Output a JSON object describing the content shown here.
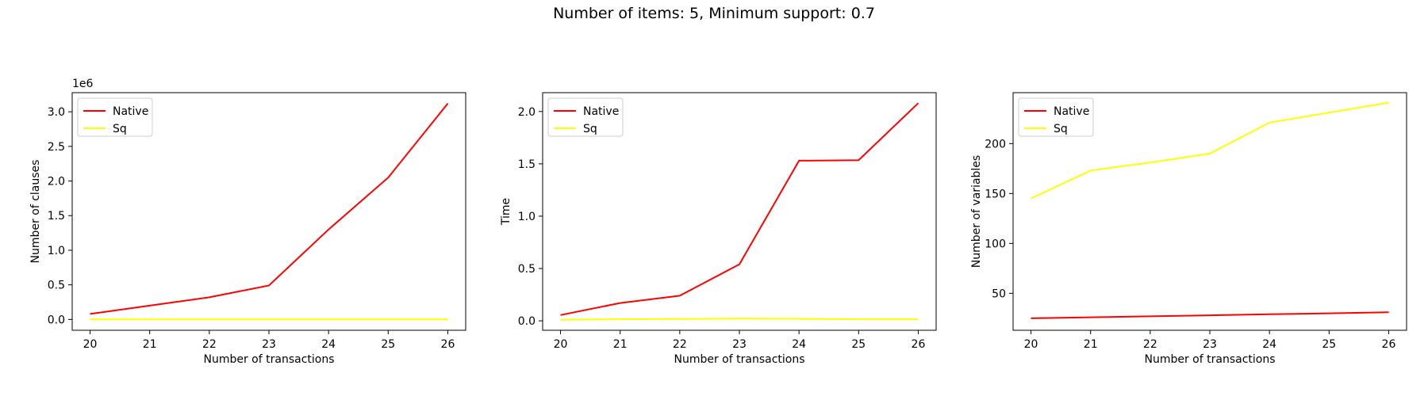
{
  "suptitle": "Number of items: 5, Minimum support: 0.7",
  "colors": {
    "native": "#ff0000",
    "sq": "#ffff00"
  },
  "chart_data": [
    {
      "type": "line",
      "title": "",
      "xlabel": "Number of transactions",
      "ylabel": "Number of clauses",
      "offset_label": "1e6",
      "x": [
        20,
        21,
        22,
        23,
        24,
        25,
        26
      ],
      "xlim": [
        19.7,
        26.3
      ],
      "ylim": [
        -0.156,
        3.276
      ],
      "yticks": [
        0.0,
        0.5,
        1.0,
        1.5,
        2.0,
        2.5,
        3.0
      ],
      "ytick_labels": [
        "0.0",
        "0.5",
        "1.0",
        "1.5",
        "2.0",
        "2.5",
        "3.0"
      ],
      "grid": false,
      "legend": "top-left",
      "series": [
        {
          "name": "Native",
          "color": "#ff0000",
          "values": [
            0.08,
            0.2,
            0.32,
            0.49,
            1.3,
            2.05,
            3.12
          ]
        },
        {
          "name": "Sq",
          "color": "#ffff00",
          "values": [
            0.001,
            0.001,
            0.001,
            0.001,
            0.001,
            0.001,
            0.001
          ]
        }
      ]
    },
    {
      "type": "line",
      "title": "",
      "xlabel": "Number of transactions",
      "ylabel": "Time",
      "x": [
        20,
        21,
        22,
        23,
        24,
        25,
        26
      ],
      "xlim": [
        19.7,
        26.3
      ],
      "ylim": [
        -0.09,
        2.18
      ],
      "yticks": [
        0.0,
        0.5,
        1.0,
        1.5,
        2.0
      ],
      "ytick_labels": [
        "0.0",
        "0.5",
        "1.0",
        "1.5",
        "2.0"
      ],
      "grid": false,
      "legend": "top-left",
      "series": [
        {
          "name": "Native",
          "color": "#ff0000",
          "values": [
            0.055,
            0.17,
            0.24,
            0.54,
            1.53,
            1.535,
            2.08
          ]
        },
        {
          "name": "Sq",
          "color": "#ffff00",
          "values": [
            0.01,
            0.015,
            0.018,
            0.022,
            0.02,
            0.015,
            0.015
          ]
        }
      ]
    },
    {
      "type": "line",
      "title": "",
      "xlabel": "Number of transactions",
      "ylabel": "Number of variables",
      "x": [
        20,
        21,
        22,
        23,
        24,
        25,
        26
      ],
      "xlim": [
        19.7,
        26.3
      ],
      "ylim": [
        13,
        251
      ],
      "yticks": [
        50,
        100,
        150,
        200
      ],
      "ytick_labels": [
        "50",
        "100",
        "150",
        "200"
      ],
      "grid": false,
      "legend": "top-left",
      "series": [
        {
          "name": "Native",
          "color": "#ff0000",
          "values": [
            25,
            26,
            27,
            28,
            29,
            30,
            31
          ]
        },
        {
          "name": "Sq",
          "color": "#ffff00",
          "values": [
            145,
            173,
            181,
            190,
            221,
            231,
            241
          ]
        }
      ]
    }
  ]
}
